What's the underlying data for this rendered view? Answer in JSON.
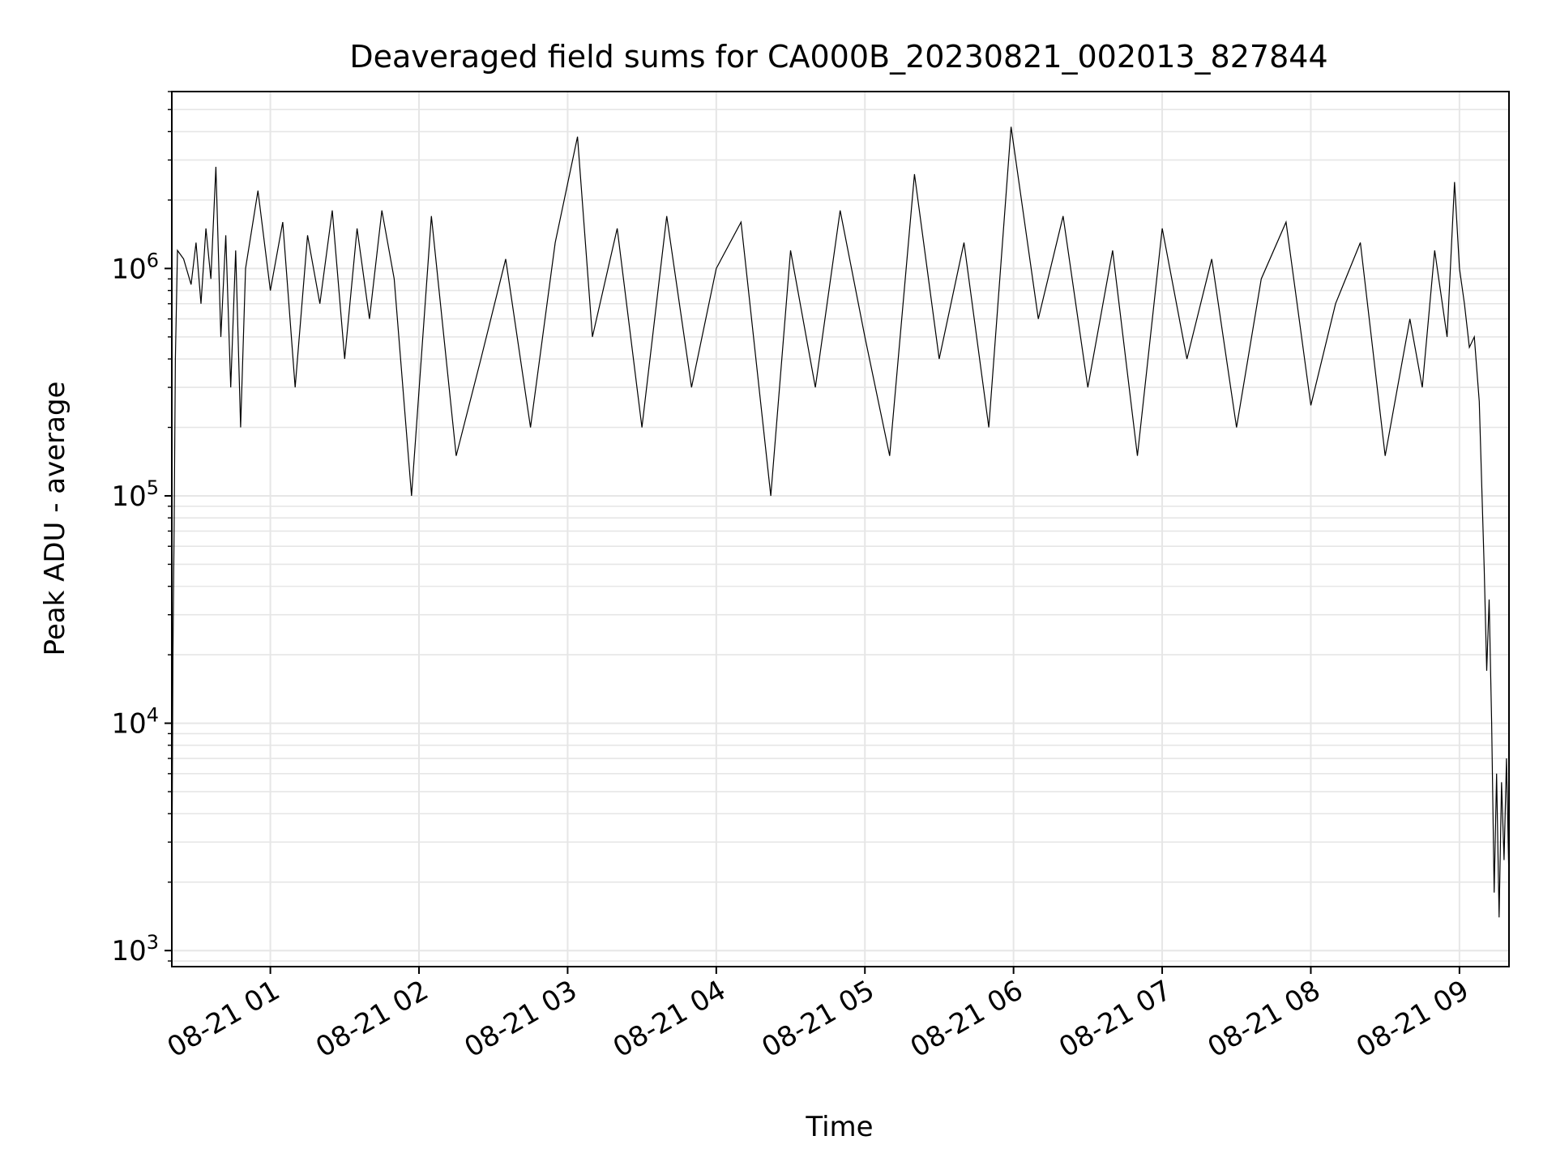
{
  "chart_data": {
    "type": "line",
    "title": "Deaveraged field sums for CA000B_20230821_002013_827844",
    "xlabel": "Time",
    "ylabel": "Peak ADU - average",
    "yscale": "log",
    "ylim": [
      850,
      6000000
    ],
    "xlim": [
      "2023-08-21T00:20:13",
      "2023-08-21T09:20:00"
    ],
    "grid": true,
    "line_color": "#000000",
    "grid_color": "#e6e6e6",
    "x_ticks": [
      {
        "value": "2023-08-21T01:00:00",
        "label": "08-21 01"
      },
      {
        "value": "2023-08-21T02:00:00",
        "label": "08-21 02"
      },
      {
        "value": "2023-08-21T03:00:00",
        "label": "08-21 03"
      },
      {
        "value": "2023-08-21T04:00:00",
        "label": "08-21 04"
      },
      {
        "value": "2023-08-21T05:00:00",
        "label": "08-21 05"
      },
      {
        "value": "2023-08-21T06:00:00",
        "label": "08-21 06"
      },
      {
        "value": "2023-08-21T07:00:00",
        "label": "08-21 07"
      },
      {
        "value": "2023-08-21T08:00:00",
        "label": "08-21 08"
      },
      {
        "value": "2023-08-21T09:00:00",
        "label": "08-21 09"
      }
    ],
    "y_ticks": [
      {
        "value": 1000,
        "base": "10",
        "exp": "3"
      },
      {
        "value": 10000,
        "base": "10",
        "exp": "4"
      },
      {
        "value": 100000,
        "base": "10",
        "exp": "5"
      },
      {
        "value": 1000000,
        "base": "10",
        "exp": "6"
      }
    ],
    "series": [
      {
        "x": [
          "2023-08-21T00:20:13",
          "2023-08-21T00:20:40",
          "2023-08-21T00:21:10",
          "2023-08-21T00:21:40",
          "2023-08-21T00:22:30",
          "2023-08-21T00:25:00",
          "2023-08-21T00:28:00",
          "2023-08-21T00:30:00",
          "2023-08-21T00:32:00",
          "2023-08-21T00:34:00",
          "2023-08-21T00:36:00",
          "2023-08-21T00:38:00",
          "2023-08-21T00:40:00",
          "2023-08-21T00:42:00",
          "2023-08-21T00:44:00",
          "2023-08-21T00:46:00",
          "2023-08-21T00:48:00",
          "2023-08-21T00:50:00",
          "2023-08-21T00:55:00",
          "2023-08-21T01:00:00",
          "2023-08-21T01:05:00",
          "2023-08-21T01:10:00",
          "2023-08-21T01:15:00",
          "2023-08-21T01:20:00",
          "2023-08-21T01:25:00",
          "2023-08-21T01:30:00",
          "2023-08-21T01:35:00",
          "2023-08-21T01:40:00",
          "2023-08-21T01:45:00",
          "2023-08-21T01:50:00",
          "2023-08-21T01:57:00",
          "2023-08-21T02:05:00",
          "2023-08-21T02:15:00",
          "2023-08-21T02:25:00",
          "2023-08-21T02:35:00",
          "2023-08-21T02:45:00",
          "2023-08-21T02:55:00",
          "2023-08-21T03:04:00",
          "2023-08-21T03:10:00",
          "2023-08-21T03:20:00",
          "2023-08-21T03:30:00",
          "2023-08-21T03:40:00",
          "2023-08-21T03:50:00",
          "2023-08-21T04:00:00",
          "2023-08-21T04:10:00",
          "2023-08-21T04:22:00",
          "2023-08-21T04:30:00",
          "2023-08-21T04:40:00",
          "2023-08-21T04:50:00",
          "2023-08-21T05:00:00",
          "2023-08-21T05:10:00",
          "2023-08-21T05:20:00",
          "2023-08-21T05:30:00",
          "2023-08-21T05:40:00",
          "2023-08-21T05:50:00",
          "2023-08-21T05:59:00",
          "2023-08-21T06:10:00",
          "2023-08-21T06:20:00",
          "2023-08-21T06:30:00",
          "2023-08-21T06:40:00",
          "2023-08-21T06:50:00",
          "2023-08-21T07:00:00",
          "2023-08-21T07:10:00",
          "2023-08-21T07:20:00",
          "2023-08-21T07:30:00",
          "2023-08-21T07:40:00",
          "2023-08-21T07:50:00",
          "2023-08-21T08:00:00",
          "2023-08-21T08:10:00",
          "2023-08-21T08:20:00",
          "2023-08-21T08:30:00",
          "2023-08-21T08:40:00",
          "2023-08-21T08:45:00",
          "2023-08-21T08:50:00",
          "2023-08-21T08:55:00",
          "2023-08-21T08:58:00",
          "2023-08-21T09:00:00",
          "2023-08-21T09:02:00",
          "2023-08-21T09:04:00",
          "2023-08-21T09:06:00",
          "2023-08-21T09:08:00",
          "2023-08-21T09:10:00",
          "2023-08-21T09:11:00",
          "2023-08-21T09:12:00",
          "2023-08-21T09:13:00",
          "2023-08-21T09:14:00",
          "2023-08-21T09:15:00",
          "2023-08-21T09:16:00",
          "2023-08-21T09:17:00",
          "2023-08-21T09:18:00",
          "2023-08-21T09:19:00",
          "2023-08-21T09:20:00"
        ],
        "y": [
          1600,
          20000,
          75000,
          400000,
          1200000,
          1100000,
          850000,
          1300000,
          700000,
          1500000,
          900000,
          2800000,
          500000,
          1400000,
          300000,
          1200000,
          200000,
          1000000,
          2200000,
          800000,
          1600000,
          300000,
          1400000,
          700000,
          1800000,
          400000,
          1500000,
          600000,
          1800000,
          900000,
          100000,
          1700000,
          150000,
          400000,
          1100000,
          200000,
          1300000,
          3800000,
          500000,
          1500000,
          200000,
          1700000,
          300000,
          1000000,
          1600000,
          100000,
          1200000,
          300000,
          1800000,
          500000,
          150000,
          2600000,
          400000,
          1300000,
          200000,
          4200000,
          600000,
          1700000,
          300000,
          1200000,
          150000,
          1500000,
          400000,
          1100000,
          200000,
          900000,
          1600000,
          250000,
          700000,
          1300000,
          150000,
          600000,
          300000,
          1200000,
          500000,
          2400000,
          1000000,
          700000,
          450000,
          500000,
          260000,
          48000,
          17000,
          35000,
          10000,
          1800,
          6000,
          1400,
          5500,
          2500,
          7000,
          2000
        ]
      }
    ]
  }
}
